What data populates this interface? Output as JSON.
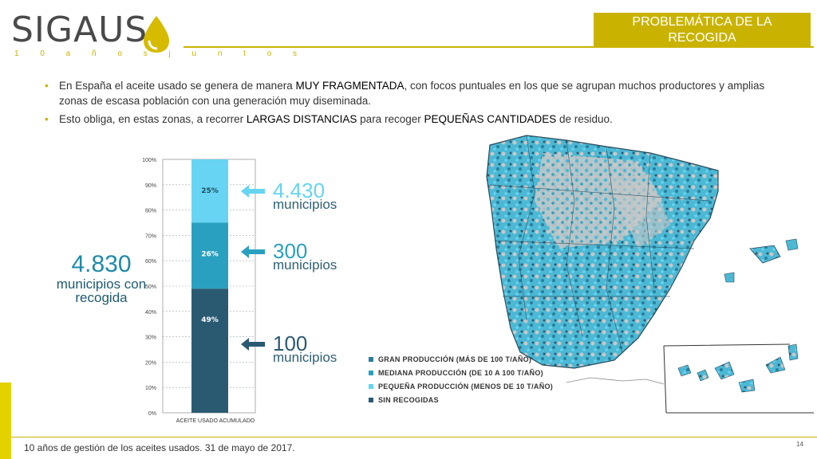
{
  "header": {
    "logo_text": "SIGAUS",
    "logo_tagline": "1 0  a ñ o s  j u n t o s",
    "section_title_line1": "PROBLEMÁTICA DE LA",
    "section_title_line2": "RECOGIDA"
  },
  "bullets": [
    {
      "pre": "En España el aceite usado se genera de manera ",
      "bold": "MUY FRAGMENTADA",
      "post": ", con focos puntuales en los que se agrupan muchos productores y amplias zonas de escasa población con una generación muy diseminada."
    },
    {
      "pre": "Esto obliga, en estas zonas, a recorrer ",
      "bold": "LARGAS DISTANCIAS",
      "mid": " para recoger ",
      "bold2": "PEQUEÑAS CANTIDADES",
      "post": " de residuo."
    }
  ],
  "summary": {
    "number": "4.830",
    "label_line1": "municipios con",
    "label_line2": "recogida"
  },
  "chart_data": {
    "type": "bar",
    "stacked": true,
    "categories": [
      "ACEITE USADO ACUMULADO"
    ],
    "series": [
      {
        "label": "49%",
        "value": 49,
        "color": "#2a5a72"
      },
      {
        "label": "26%",
        "value": 26,
        "color": "#2aa0c0"
      },
      {
        "label": "25%",
        "value": 25,
        "color": "#66d4f2"
      }
    ],
    "ylim": [
      0,
      100
    ],
    "yticks": [
      "0%",
      "10%",
      "20%",
      "30%",
      "40%",
      "50%",
      "60%",
      "70%",
      "80%",
      "90%",
      "100%"
    ],
    "grid": true
  },
  "callouts": [
    {
      "number": "4.430",
      "label": "municipios",
      "color": "#66d4f2"
    },
    {
      "number": "300",
      "label": "municipios",
      "color": "#2aa0c0"
    },
    {
      "number": "100",
      "label": "municipios",
      "color": "#2a5a72"
    }
  ],
  "legend": [
    {
      "label": "GRAN PRODUCCIÓN (MÁS DE 100 T/AÑO)",
      "color": "#2a7f9c"
    },
    {
      "label": "MEDIANA PRODUCCIÓN (DE 10 A 100 T/AÑO)",
      "color": "#2aa0c0"
    },
    {
      "label": "PEQUEÑA PRODUCCIÓN (MENOS DE 10 T/AÑO)",
      "color": "#66d4f2"
    },
    {
      "label": "SIN RECOGIDAS",
      "color": "#2a5a72"
    }
  ],
  "footer": {
    "text": "10 años de gestión de los aceites usados. 31 de mayo de 2017.",
    "page": "14"
  },
  "colors": {
    "accent": "#c9b300",
    "map_grey": "#c8c8c8"
  }
}
